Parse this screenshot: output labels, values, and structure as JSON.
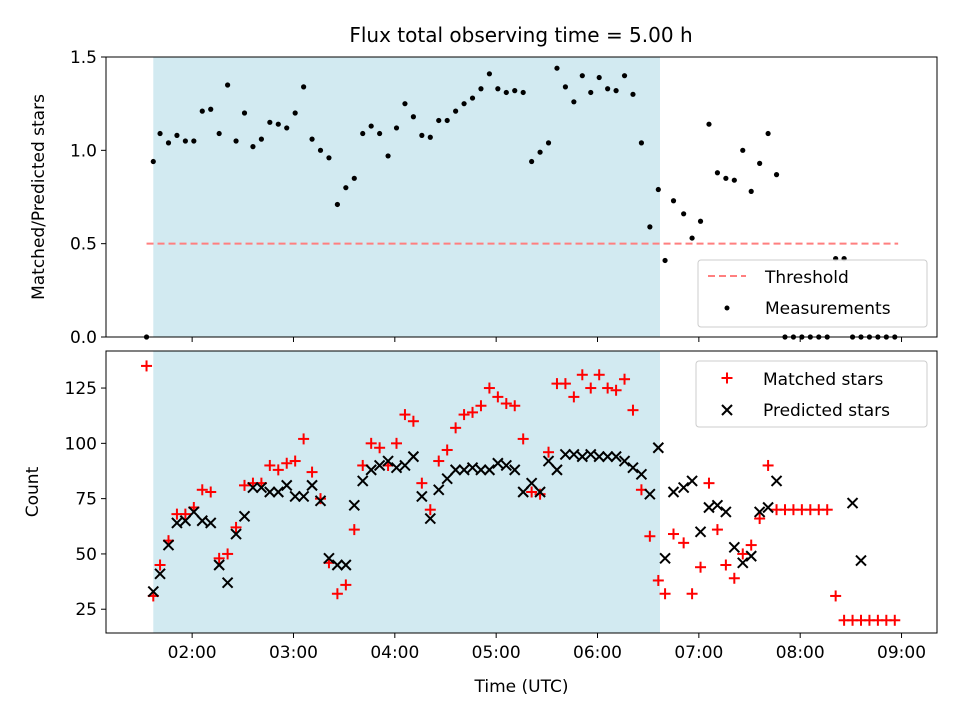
{
  "chart_data": [
    {
      "type": "scatter",
      "title": "Flux total observing time = 5.00 h",
      "xlabel": "",
      "ylabel": "Matched/Predicted stars",
      "xlim": [
        "01:09",
        "09:21"
      ],
      "ylim": [
        0,
        1.5
      ],
      "yticks": [
        0,
        0.5,
        1.0,
        1.5
      ],
      "ytick_labels": [
        "0.0",
        "0.5",
        "1.0",
        "1.5"
      ],
      "shaded_interval": [
        "01:37",
        "06:37"
      ],
      "shade_color": "#add8e6",
      "legend": {
        "placement": "lower right"
      },
      "series": [
        {
          "name": "Threshold",
          "kind": "dashed-line",
          "color": "#ff7f7f",
          "x": [
            "01:33",
            "08:58"
          ],
          "y": [
            0.5,
            0.5
          ]
        },
        {
          "name": "Measurements",
          "kind": "dot",
          "color": "#000000",
          "x": [
            "01:33",
            "01:37",
            "01:41",
            "01:46",
            "01:51",
            "01:56",
            "02:01",
            "02:06",
            "02:11",
            "02:16",
            "02:21",
            "02:26",
            "02:31",
            "02:36",
            "02:41",
            "02:46",
            "02:51",
            "02:56",
            "03:01",
            "03:06",
            "03:11",
            "03:16",
            "03:21",
            "03:26",
            "03:31",
            "03:36",
            "03:41",
            "03:46",
            "03:51",
            "03:56",
            "04:01",
            "04:06",
            "04:11",
            "04:16",
            "04:21",
            "04:26",
            "04:31",
            "04:36",
            "04:41",
            "04:46",
            "04:51",
            "04:56",
            "05:01",
            "05:06",
            "05:11",
            "05:16",
            "05:21",
            "05:26",
            "05:31",
            "05:36",
            "05:41",
            "05:46",
            "05:51",
            "05:56",
            "06:01",
            "06:06",
            "06:11",
            "06:16",
            "06:21",
            "06:26",
            "06:31",
            "06:36",
            "06:40",
            "06:45",
            "06:51",
            "06:56",
            "07:01",
            "07:06",
            "07:11",
            "07:16",
            "07:21",
            "07:26",
            "07:31",
            "07:36",
            "07:41",
            "07:46",
            "07:51",
            "07:56",
            "08:01",
            "08:06",
            "08:11",
            "08:16",
            "08:21",
            "08:26",
            "08:31",
            "08:36",
            "08:41",
            "08:46",
            "08:51",
            "08:56"
          ],
          "y": [
            0.0,
            0.94,
            1.09,
            1.04,
            1.08,
            1.05,
            1.05,
            1.21,
            1.22,
            1.09,
            1.35,
            1.05,
            1.2,
            1.02,
            1.06,
            1.15,
            1.14,
            1.12,
            1.2,
            1.34,
            1.06,
            1.0,
            0.96,
            0.71,
            0.8,
            0.85,
            1.09,
            1.13,
            1.09,
            0.97,
            1.12,
            1.25,
            1.18,
            1.08,
            1.07,
            1.16,
            1.16,
            1.21,
            1.25,
            1.28,
            1.33,
            1.41,
            1.33,
            1.31,
            1.32,
            1.31,
            0.94,
            0.99,
            1.04,
            1.44,
            1.34,
            1.26,
            1.4,
            1.31,
            1.39,
            1.33,
            1.32,
            1.4,
            1.3,
            1.04,
            0.59,
            0.79,
            0.41,
            0.73,
            0.66,
            0.53,
            0.62,
            1.14,
            0.88,
            0.85,
            0.84,
            1.0,
            0.78,
            0.93,
            1.09,
            0.87,
            0.0,
            0.0,
            0.0,
            0.0,
            0.0,
            0.0,
            0.42,
            0.42,
            0.0,
            0.0,
            0.0,
            0.0,
            0.0,
            0.0
          ]
        }
      ]
    },
    {
      "type": "scatter",
      "title": "",
      "xlabel": "Time (UTC)",
      "ylabel": "Count",
      "xlim": [
        "01:09",
        "09:21"
      ],
      "ylim": [
        14.25,
        141.75
      ],
      "yticks": [
        25,
        50,
        75,
        100,
        125
      ],
      "ytick_labels": [
        "25",
        "50",
        "75",
        "100",
        "125"
      ],
      "xticks": [
        "02:00",
        "03:00",
        "04:00",
        "05:00",
        "06:00",
        "07:00",
        "08:00",
        "09:00"
      ],
      "xtick_labels": [
        "02:00",
        "03:00",
        "04:00",
        "05:00",
        "06:00",
        "07:00",
        "08:00",
        "09:00"
      ],
      "shaded_interval": [
        "01:37",
        "06:37"
      ],
      "shade_color": "#add8e6",
      "legend": {
        "placement": "upper right"
      },
      "series": [
        {
          "name": "Matched stars",
          "kind": "plus",
          "color": "#ff0000",
          "x": [
            "01:33",
            "01:37",
            "01:41",
            "01:46",
            "01:51",
            "01:56",
            "02:01",
            "02:06",
            "02:11",
            "02:16",
            "02:21",
            "02:26",
            "02:31",
            "02:36",
            "02:41",
            "02:46",
            "02:51",
            "02:56",
            "03:01",
            "03:06",
            "03:11",
            "03:16",
            "03:21",
            "03:26",
            "03:31",
            "03:36",
            "03:41",
            "03:46",
            "03:51",
            "03:56",
            "04:01",
            "04:06",
            "04:11",
            "04:16",
            "04:21",
            "04:26",
            "04:31",
            "04:36",
            "04:41",
            "04:46",
            "04:51",
            "04:56",
            "05:01",
            "05:06",
            "05:11",
            "05:16",
            "05:21",
            "05:26",
            "05:31",
            "05:36",
            "05:41",
            "05:46",
            "05:51",
            "05:56",
            "06:01",
            "06:06",
            "06:11",
            "06:16",
            "06:21",
            "06:26",
            "06:31",
            "06:36",
            "06:40",
            "06:45",
            "06:51",
            "06:56",
            "07:01",
            "07:06",
            "07:11",
            "07:16",
            "07:21",
            "07:26",
            "07:31",
            "07:36",
            "07:41",
            "07:46",
            "07:51",
            "07:56",
            "08:01",
            "08:06",
            "08:11",
            "08:16",
            "08:21",
            "08:26",
            "08:31",
            "08:36",
            "08:41",
            "08:46",
            "08:51",
            "08:56"
          ],
          "y": [
            135,
            31,
            45,
            56,
            68,
            68,
            71,
            79,
            78,
            48,
            50,
            62,
            81,
            82,
            82,
            90,
            88,
            91,
            92,
            102,
            87,
            75,
            46,
            32,
            36,
            61,
            90,
            100,
            98,
            90,
            100,
            113,
            110,
            82,
            70,
            92,
            97,
            107,
            113,
            114,
            117,
            125,
            121,
            118,
            117,
            102,
            78,
            77,
            96,
            127,
            127,
            121,
            131,
            125,
            131,
            125,
            124,
            129,
            115,
            79,
            58,
            38,
            32,
            59,
            55,
            32,
            44,
            82,
            61,
            45,
            39,
            50,
            54,
            66,
            90,
            70,
            70,
            70,
            70,
            70,
            70,
            70,
            31,
            20,
            20,
            20,
            20,
            20,
            20,
            20
          ]
        },
        {
          "name": "Predicted stars",
          "kind": "cross",
          "color": "#000000",
          "x": [
            "01:37",
            "01:41",
            "01:46",
            "01:51",
            "01:56",
            "02:01",
            "02:06",
            "02:11",
            "02:16",
            "02:21",
            "02:26",
            "02:31",
            "02:36",
            "02:41",
            "02:46",
            "02:51",
            "02:56",
            "03:01",
            "03:06",
            "03:11",
            "03:16",
            "03:21",
            "03:26",
            "03:31",
            "03:36",
            "03:41",
            "03:46",
            "03:51",
            "03:56",
            "04:01",
            "04:06",
            "04:11",
            "04:16",
            "04:21",
            "04:26",
            "04:31",
            "04:36",
            "04:41",
            "04:46",
            "04:51",
            "04:56",
            "05:01",
            "05:06",
            "05:11",
            "05:16",
            "05:21",
            "05:26",
            "05:31",
            "05:36",
            "05:41",
            "05:46",
            "05:51",
            "05:56",
            "06:01",
            "06:06",
            "06:11",
            "06:16",
            "06:21",
            "06:26",
            "06:31",
            "06:36",
            "06:40",
            "06:45",
            "06:51",
            "06:56",
            "07:01",
            "07:06",
            "07:11",
            "07:16",
            "07:21",
            "07:26",
            "07:31",
            "07:36",
            "07:41",
            "07:46",
            "08:31",
            "08:36"
          ],
          "y": [
            33,
            41,
            54,
            64,
            65,
            69,
            65,
            64,
            45,
            37,
            59,
            67,
            80,
            80,
            78,
            78,
            81,
            76,
            76,
            81,
            74,
            48,
            45,
            45,
            72,
            83,
            88,
            90,
            92,
            89,
            90,
            94,
            76,
            66,
            79,
            84,
            88,
            88,
            89,
            88,
            88,
            91,
            90,
            88,
            78,
            82,
            78,
            92,
            88,
            95,
            95,
            94,
            95,
            94,
            94,
            94,
            92,
            89,
            86,
            77,
            98,
            48,
            78,
            80,
            83,
            60,
            71,
            72,
            69,
            53,
            46,
            49,
            69,
            71,
            83,
            73,
            47
          ]
        }
      ]
    }
  ]
}
